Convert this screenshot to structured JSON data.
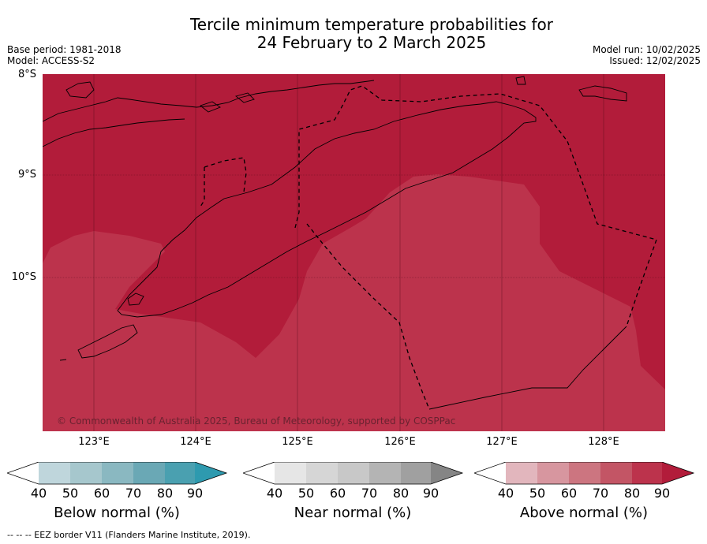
{
  "title": {
    "line1": "Tercile minimum temperature probabilities for",
    "line2": "24 February to 2 March 2025"
  },
  "meta_left": {
    "base_period": "Base period: 1981-2018",
    "model": "Model: ACCESS-S2"
  },
  "meta_right": {
    "model_run": "Model run: 10/02/2025",
    "issued": "Issued: 12/02/2025"
  },
  "map": {
    "lat_labels": [
      "8°S",
      "9°S",
      "10°S"
    ],
    "lon_labels": [
      "123°E",
      "124°E",
      "125°E",
      "126°E",
      "127°E",
      "128°E"
    ],
    "colors": {
      "prob_90": "#b21c3a",
      "prob_80": "#bc334c",
      "coastline": "#000000"
    },
    "copyright": "© Commonwealth of Australia 2025, Bureau of Meteorology, supported by COSPPac"
  },
  "colorbars": [
    {
      "title": "Below normal (%)",
      "ticks": [
        "40",
        "50",
        "60",
        "70",
        "80",
        "90"
      ],
      "colors": [
        "#ffffff",
        "#bfd6dc",
        "#a6c7cd",
        "#8ab8c1",
        "#6aa8b5",
        "#4aa0b0",
        "#2e9aaf"
      ]
    },
    {
      "title": "Near normal (%)",
      "ticks": [
        "40",
        "50",
        "60",
        "70",
        "80",
        "90"
      ],
      "colors": [
        "#ffffff",
        "#e6e6e6",
        "#d6d6d6",
        "#c8c8c8",
        "#b4b4b4",
        "#a0a0a0",
        "#858585"
      ]
    },
    {
      "title": "Above normal (%)",
      "ticks": [
        "40",
        "50",
        "60",
        "70",
        "80",
        "90"
      ],
      "colors": [
        "#ffffff",
        "#e2b6bd",
        "#d7969f",
        "#cc7580",
        "#c35565",
        "#bc334c",
        "#b21c3a"
      ]
    }
  ],
  "footer": "--  --  -- EEZ border V11 (Flanders Marine Institute, 2019)."
}
